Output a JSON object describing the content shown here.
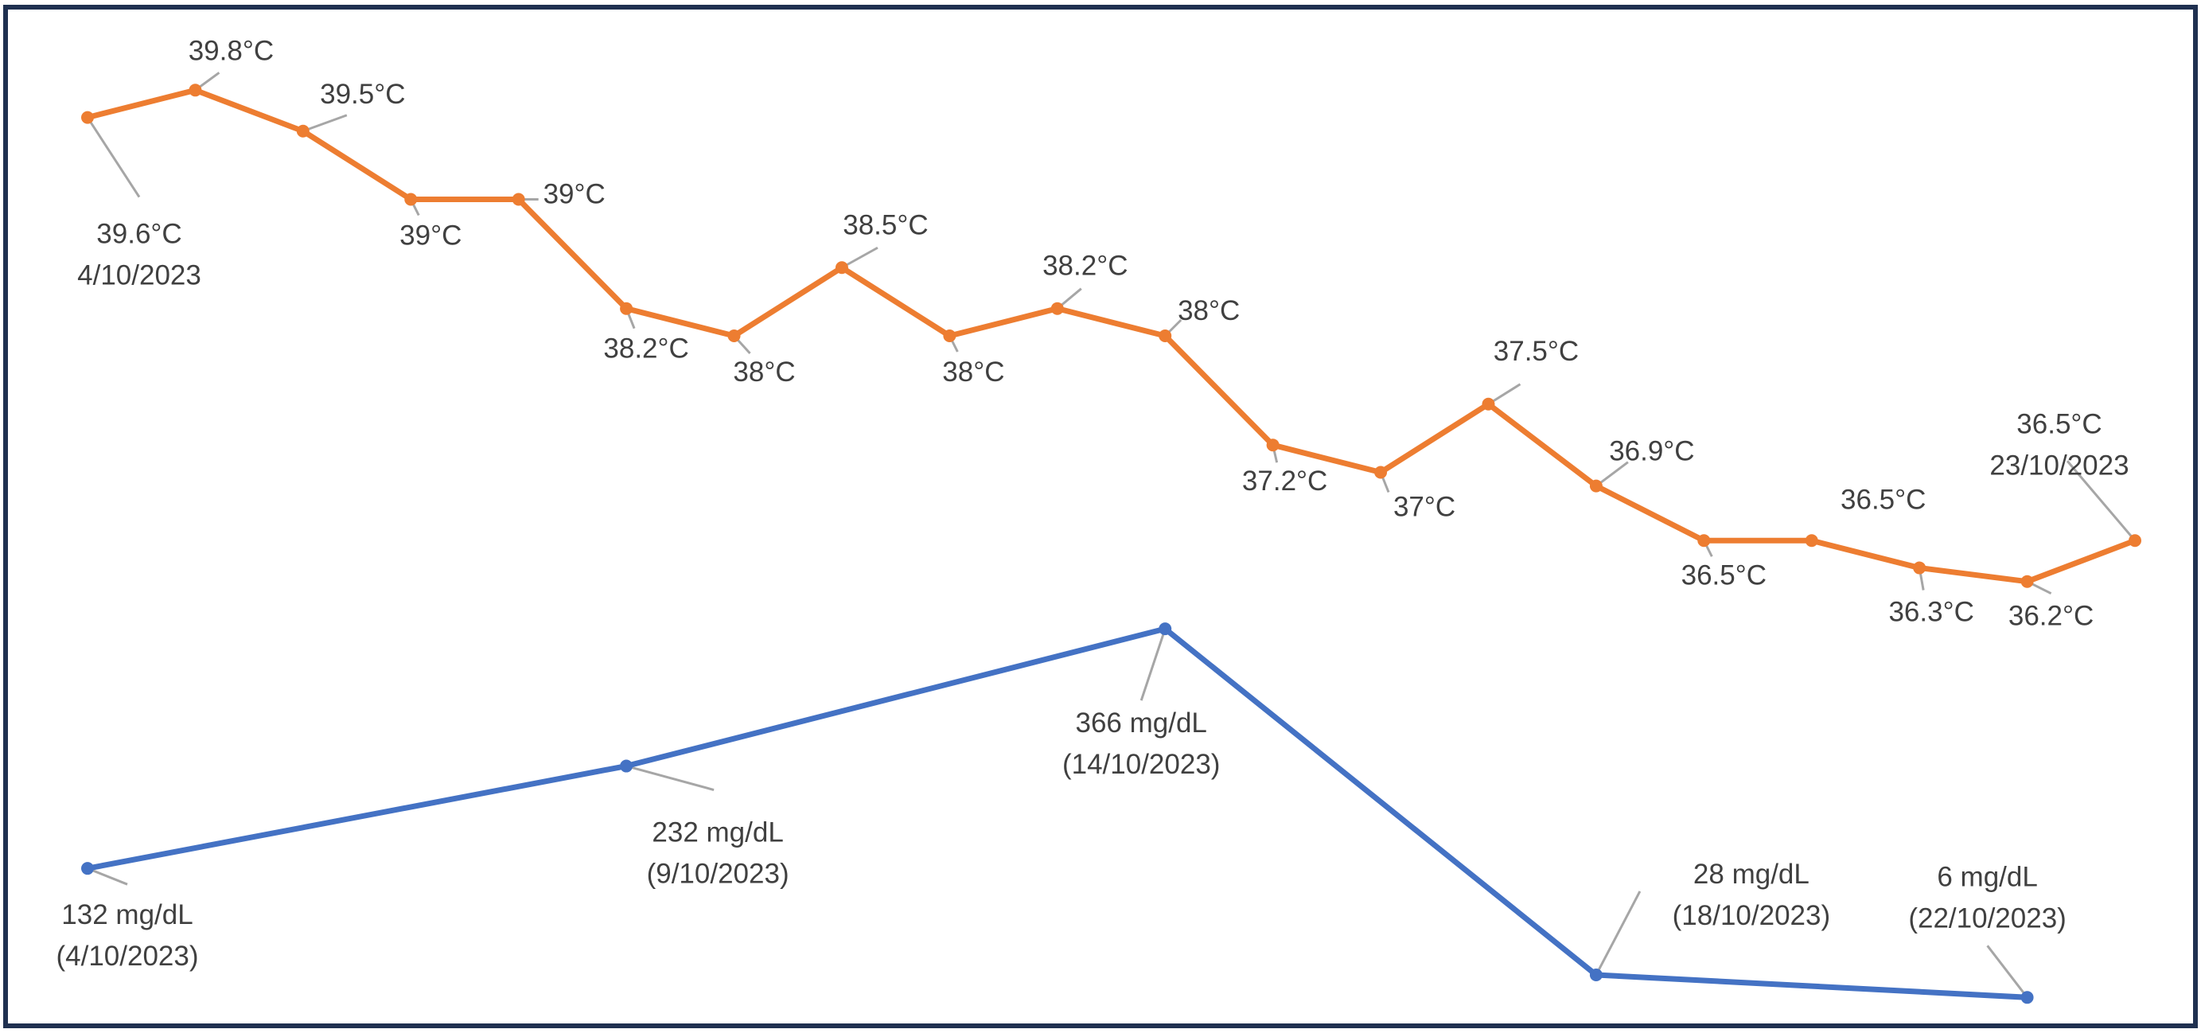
{
  "chart_data": [
    {
      "type": "line",
      "grid": false,
      "legend": "none",
      "color": "#ED7D31",
      "unit": "°C",
      "ylim": [
        36,
        40
      ],
      "xlim": [
        4,
        23
      ],
      "points": [
        {
          "x": 4,
          "y": 39.6,
          "label": "39.6°C",
          "date": "4/10/2023"
        },
        {
          "x": 5,
          "y": 39.8,
          "label": "39.8°C"
        },
        {
          "x": 6,
          "y": 39.5,
          "label": "39.5°C"
        },
        {
          "x": 7,
          "y": 39.0,
          "label": "39°C"
        },
        {
          "x": 8,
          "y": 39.0,
          "label": "39°C"
        },
        {
          "x": 9,
          "y": 38.2,
          "label": "38.2°C"
        },
        {
          "x": 10,
          "y": 38.0,
          "label": "38°C"
        },
        {
          "x": 11,
          "y": 38.5,
          "label": "38.5°C"
        },
        {
          "x": 12,
          "y": 38.0,
          "label": "38°C"
        },
        {
          "x": 13,
          "y": 38.2,
          "label": "38.2°C"
        },
        {
          "x": 14,
          "y": 38.0,
          "label": "38°C"
        },
        {
          "x": 15,
          "y": 37.2,
          "label": "37.2°C"
        },
        {
          "x": 16,
          "y": 37.0,
          "label": "37°C"
        },
        {
          "x": 17,
          "y": 37.5,
          "label": "37.5°C"
        },
        {
          "x": 18,
          "y": 36.9,
          "label": "36.9°C"
        },
        {
          "x": 19,
          "y": 36.5,
          "label": "36.5°C"
        },
        {
          "x": 20,
          "y": 36.5,
          "label": "36.5°C"
        },
        {
          "x": 21,
          "y": 36.3,
          "label": "36.3°C"
        },
        {
          "x": 22,
          "y": 36.2,
          "label": "36.2°C"
        },
        {
          "x": 23,
          "y": 36.5,
          "label": "36.5°C",
          "date": "23/10/2023"
        }
      ]
    },
    {
      "type": "line",
      "grid": false,
      "legend": "none",
      "color": "#4472C4",
      "unit": "mg/dL",
      "ylim": [
        0,
        370
      ],
      "xlim": [
        4,
        23
      ],
      "points": [
        {
          "x": 4,
          "y": 132,
          "label": "132 mg/dL",
          "date": "(4/10/2023)"
        },
        {
          "x": 9,
          "y": 232,
          "label": "232 mg/dL",
          "date": "(9/10/2023)"
        },
        {
          "x": 14,
          "y": 366,
          "label": "366 mg/dL",
          "date": "(14/10/2023)"
        },
        {
          "x": 18,
          "y": 28,
          "label": "28 mg/dL",
          "date": "(18/10/2023)"
        },
        {
          "x": 22,
          "y": 6,
          "label": "6 mg/dL",
          "date": "(22/10/2023)"
        }
      ]
    }
  ]
}
